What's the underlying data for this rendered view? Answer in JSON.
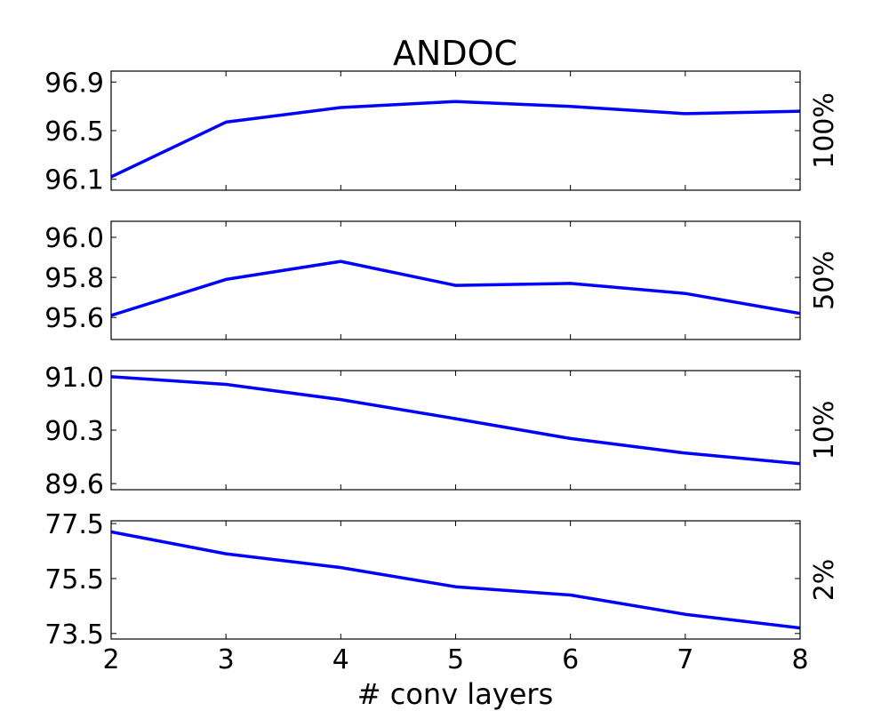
{
  "chart_data": {
    "type": "line",
    "title": "ANDOC",
    "xlabel": "# conv layers",
    "x": [
      2,
      3,
      4,
      5,
      6,
      7,
      8
    ],
    "x_ticks": [
      "2",
      "3",
      "4",
      "5",
      "6",
      "7",
      "8"
    ],
    "xlim": [
      2,
      8
    ],
    "line_color": "#0000ff",
    "grid": false,
    "panels": [
      {
        "label": "100%",
        "values": [
          96.12,
          96.57,
          96.69,
          96.74,
          96.7,
          96.64,
          96.66
        ],
        "ylim": [
          96.01,
          96.99
        ],
        "y_ticks": [
          96.1,
          96.5,
          96.9
        ],
        "y_tick_labels": [
          "96.1",
          "96.5",
          "96.9"
        ]
      },
      {
        "label": "50%",
        "values": [
          95.61,
          95.79,
          95.88,
          95.76,
          95.77,
          95.72,
          95.62
        ],
        "ylim": [
          95.49,
          96.08
        ],
        "y_ticks": [
          95.6,
          95.8,
          96.0
        ],
        "y_tick_labels": [
          "95.6",
          "95.8",
          "96.0"
        ]
      },
      {
        "label": "10%",
        "values": [
          91.0,
          90.9,
          90.7,
          90.45,
          90.19,
          90.0,
          89.86
        ],
        "ylim": [
          89.52,
          91.08
        ],
        "y_ticks": [
          89.6,
          90.3,
          91.0
        ],
        "y_tick_labels": [
          "89.6",
          "90.3",
          "91.0"
        ]
      },
      {
        "label": "2%",
        "values": [
          77.2,
          76.4,
          75.9,
          75.2,
          74.9,
          74.2,
          73.7
        ],
        "ylim": [
          73.3,
          77.6
        ],
        "y_ticks": [
          73.5,
          75.5,
          77.5
        ],
        "y_tick_labels": [
          "73.5",
          "75.5",
          "77.5"
        ]
      }
    ]
  }
}
